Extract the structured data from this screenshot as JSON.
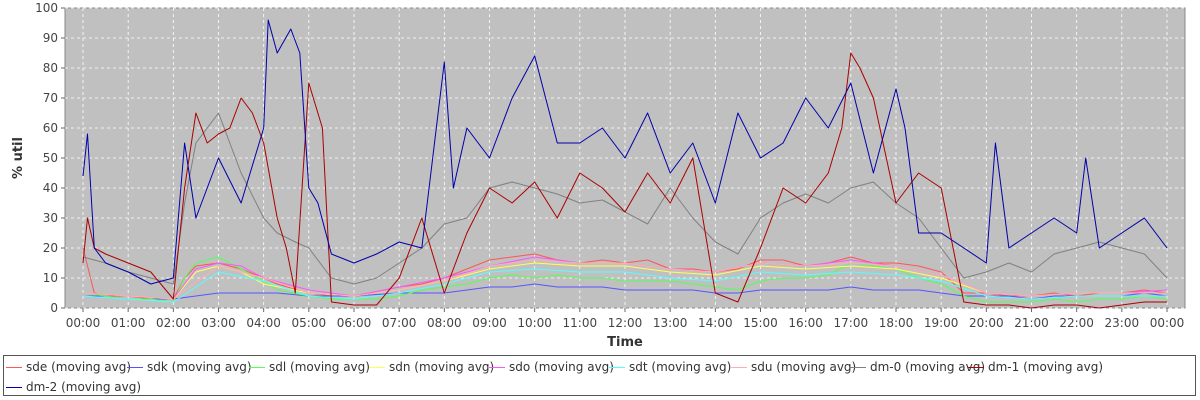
{
  "chart_data": {
    "type": "line",
    "title": "",
    "xlabel": "Time",
    "ylabel": "% util",
    "ylim": [
      0,
      100
    ],
    "yticks": [
      0,
      10,
      20,
      30,
      40,
      50,
      60,
      70,
      80,
      90,
      100
    ],
    "xlim": [
      0,
      24
    ],
    "xticks": [
      "00:00",
      "01:00",
      "02:00",
      "03:00",
      "04:00",
      "05:00",
      "06:00",
      "07:00",
      "08:00",
      "09:00",
      "10:00",
      "11:00",
      "12:00",
      "13:00",
      "14:00",
      "15:00",
      "16:00",
      "17:00",
      "18:00",
      "19:00",
      "20:00",
      "21:00",
      "22:00",
      "23:00",
      "00:00"
    ],
    "grid": true,
    "plot_background": "#c0c0c0",
    "legend_position": "bottom",
    "x_unit": "hours",
    "series": [
      {
        "name": "sde (moving avg)",
        "color": "#ff5555",
        "x": [
          0,
          0.25,
          0.5,
          1,
          1.5,
          2,
          2.25,
          2.5,
          3,
          3.5,
          4,
          4.3,
          5,
          5.5,
          6,
          7,
          7.5,
          8,
          8.5,
          9,
          9.5,
          10,
          10.5,
          11,
          11.5,
          12,
          12.5,
          13,
          13.5,
          14,
          14.5,
          15,
          15.5,
          16,
          16.5,
          17,
          17.5,
          18,
          18.5,
          19,
          19.5,
          20,
          20.5,
          21,
          21.5,
          22,
          22.5,
          23,
          23.5,
          24
        ],
        "y": [
          20,
          5,
          4,
          4,
          3,
          3,
          10,
          14,
          15,
          13,
          10,
          8,
          5,
          4,
          4,
          7,
          8,
          10,
          13,
          16,
          17,
          18,
          16,
          15,
          16,
          15,
          16,
          13,
          13,
          12,
          13,
          16,
          16,
          14,
          15,
          17,
          15,
          15,
          14,
          12,
          5,
          5,
          4,
          4,
          5,
          4,
          5,
          5,
          6,
          5
        ]
      },
      {
        "name": "sdk (moving avg)",
        "color": "#5555ff",
        "x": [
          0,
          0.5,
          1,
          1.5,
          2,
          2.5,
          3,
          3.5,
          4,
          4.3,
          5,
          5.5,
          6,
          7,
          7.5,
          8,
          8.5,
          9,
          9.5,
          10,
          10.5,
          11,
          11.5,
          12,
          12.5,
          13,
          13.5,
          14,
          14.5,
          15,
          15.5,
          16,
          16.5,
          17,
          17.5,
          18,
          18.5,
          19,
          19.5,
          20,
          20.5,
          21,
          21.5,
          22,
          22.5,
          23,
          23.5,
          24
        ],
        "y": [
          4,
          4,
          3,
          3,
          3,
          4,
          5,
          5,
          5,
          5,
          4,
          4,
          4,
          5,
          5,
          5,
          6,
          7,
          7,
          8,
          7,
          7,
          7,
          6,
          6,
          6,
          6,
          5,
          5,
          6,
          6,
          6,
          6,
          7,
          6,
          6,
          6,
          5,
          4,
          4,
          4,
          3,
          4,
          4,
          4,
          4,
          5,
          4
        ]
      },
      {
        "name": "sdl (moving avg)",
        "color": "#55ff55",
        "x": [
          0,
          0.5,
          1,
          1.5,
          2,
          2.25,
          2.5,
          3,
          3.5,
          4,
          4.3,
          5,
          5.5,
          6,
          6.5,
          7,
          7.5,
          8,
          8.5,
          9,
          9.5,
          10,
          10.5,
          11,
          11.5,
          12,
          12.5,
          13,
          13.5,
          14,
          14.5,
          15,
          15.5,
          16,
          16.5,
          17,
          17.5,
          18,
          18.5,
          19,
          19.5,
          20,
          20.5,
          21,
          21.5,
          22,
          22.5,
          23,
          23.5,
          24
        ],
        "y": [
          5,
          4,
          3,
          3,
          2,
          10,
          15,
          17,
          13,
          9,
          6,
          4,
          3,
          3,
          3,
          4,
          6,
          7,
          8,
          10,
          11,
          10,
          11,
          10,
          10,
          9,
          9,
          9,
          8,
          7,
          6,
          9,
          10,
          10,
          11,
          15,
          14,
          13,
          10,
          8,
          4,
          2,
          2,
          2,
          3,
          2,
          3,
          3,
          4,
          3
        ]
      },
      {
        "name": "sdn (moving avg)",
        "color": "#ffff55",
        "x": [
          0,
          1,
          2,
          2.5,
          3,
          3.5,
          4,
          5,
          6,
          7,
          8,
          9,
          10,
          11,
          12,
          13,
          14,
          15,
          16,
          17,
          18,
          19,
          20,
          21,
          22,
          23,
          24
        ],
        "y": [
          5,
          4,
          3,
          12,
          14,
          12,
          8,
          5,
          4,
          6,
          9,
          13,
          15,
          14,
          14,
          12,
          11,
          14,
          13,
          14,
          13,
          10,
          5,
          4,
          5,
          5,
          5
        ]
      },
      {
        "name": "sdo (moving avg)",
        "color": "#ff55ff",
        "x": [
          0,
          1,
          2,
          2.5,
          3,
          3.5,
          4,
          5,
          6,
          7,
          8,
          9,
          10,
          11,
          12,
          13,
          14,
          15,
          16,
          17,
          18,
          19,
          20,
          21,
          22,
          23,
          24
        ],
        "y": [
          5,
          4,
          3,
          13,
          15,
          14,
          10,
          6,
          4,
          7,
          10,
          14,
          17,
          15,
          15,
          13,
          12,
          15,
          14,
          16,
          14,
          11,
          5,
          4,
          5,
          5,
          6
        ]
      },
      {
        "name": "sdt (moving avg)",
        "color": "#55ffff",
        "x": [
          0,
          1,
          2,
          3,
          4,
          5,
          6,
          7,
          8,
          9,
          10,
          11,
          12,
          13,
          14,
          15,
          16,
          17,
          18,
          19,
          20,
          21,
          22,
          23,
          24
        ],
        "y": [
          4,
          3,
          2,
          12,
          9,
          4,
          3,
          5,
          8,
          12,
          13,
          12,
          12,
          10,
          9,
          12,
          11,
          12,
          11,
          9,
          4,
          3,
          4,
          4,
          4
        ]
      },
      {
        "name": "sdu (moving avg)",
        "color": "#ffafaf",
        "x": [
          0,
          1,
          2,
          3,
          4,
          5,
          6,
          7,
          8,
          9,
          10,
          11,
          12,
          13,
          14,
          15,
          16,
          17,
          18,
          19,
          20,
          21,
          22,
          23,
          24
        ],
        "y": [
          5,
          4,
          3,
          14,
          10,
          5,
          4,
          6,
          9,
          14,
          16,
          15,
          15,
          13,
          12,
          15,
          14,
          15,
          14,
          11,
          5,
          4,
          5,
          5,
          5
        ]
      },
      {
        "name": "dm-0 (moving avg)",
        "color": "#808080",
        "x": [
          0,
          0.25,
          0.5,
          1,
          1.5,
          2,
          2.25,
          2.5,
          3,
          3.5,
          4,
          4.3,
          4.7,
          5,
          5.5,
          6,
          6.5,
          7,
          7.5,
          8,
          8.5,
          9,
          9.5,
          10,
          10.5,
          11,
          11.5,
          12,
          12.5,
          13,
          13.5,
          14,
          14.5,
          15,
          15.5,
          16,
          16.5,
          17,
          17.5,
          18,
          18.5,
          19,
          19.5,
          20,
          20.5,
          21,
          21.5,
          22,
          22.5,
          23,
          23.5,
          24
        ],
        "y": [
          17,
          16,
          15,
          12,
          10,
          8,
          35,
          55,
          65,
          45,
          30,
          25,
          22,
          20,
          10,
          8,
          10,
          15,
          20,
          28,
          30,
          40,
          42,
          40,
          38,
          35,
          36,
          32,
          28,
          40,
          30,
          22,
          18,
          30,
          35,
          38,
          35,
          40,
          42,
          35,
          30,
          20,
          10,
          12,
          15,
          12,
          18,
          20,
          22,
          20,
          18,
          10
        ]
      },
      {
        "name": "dm-1 (moving avg)",
        "color": "#aa0000",
        "x": [
          0,
          0.1,
          0.25,
          0.5,
          1,
          1.5,
          2,
          2.25,
          2.5,
          2.75,
          3,
          3.25,
          3.5,
          3.75,
          4,
          4.3,
          4.5,
          4.7,
          5,
          5.3,
          5.5,
          6,
          6.5,
          7,
          7.5,
          8,
          8.5,
          9,
          9.5,
          10,
          10.5,
          11,
          11.5,
          12,
          12.5,
          13,
          13.5,
          14,
          14.5,
          15,
          15.5,
          16,
          16.5,
          16.8,
          17,
          17.2,
          17.5,
          18,
          18.5,
          19,
          19.5,
          20,
          20.5,
          21,
          21.5,
          22,
          22.5,
          23,
          23.5,
          24
        ],
        "y": [
          15,
          30,
          20,
          18,
          15,
          12,
          3,
          40,
          65,
          55,
          58,
          60,
          70,
          65,
          55,
          30,
          20,
          5,
          75,
          60,
          2,
          1,
          1,
          10,
          30,
          5,
          25,
          40,
          35,
          42,
          30,
          45,
          40,
          32,
          45,
          35,
          50,
          5,
          2,
          20,
          40,
          35,
          45,
          60,
          85,
          80,
          70,
          35,
          45,
          40,
          2,
          1,
          1,
          0,
          1,
          1,
          0,
          1,
          2,
          2
        ]
      },
      {
        "name": "dm-2 (moving avg)",
        "color": "#0000aa",
        "x": [
          0,
          0.1,
          0.25,
          0.5,
          1,
          1.5,
          2,
          2.25,
          2.5,
          3,
          3.5,
          4,
          4.1,
          4.3,
          4.6,
          4.8,
          5,
          5.2,
          5.5,
          6,
          6.5,
          7,
          7.5,
          8,
          8.2,
          8.5,
          9,
          9.5,
          10,
          10.5,
          11,
          11.5,
          12,
          12.5,
          13,
          13.5,
          14,
          14.5,
          15,
          15.5,
          16,
          16.5,
          17,
          17.5,
          18,
          18.2,
          18.5,
          19,
          19.5,
          20,
          20.2,
          20.5,
          21,
          21.5,
          22,
          22.2,
          22.5,
          23,
          23.5,
          24
        ],
        "y": [
          44,
          58,
          20,
          15,
          12,
          8,
          10,
          55,
          30,
          50,
          35,
          60,
          96,
          85,
          93,
          85,
          40,
          35,
          18,
          15,
          18,
          22,
          20,
          82,
          40,
          60,
          50,
          70,
          84,
          55,
          55,
          60,
          50,
          65,
          45,
          55,
          35,
          65,
          50,
          55,
          70,
          60,
          75,
          45,
          73,
          60,
          25,
          25,
          20,
          15,
          55,
          20,
          25,
          30,
          25,
          50,
          20,
          25,
          30,
          20
        ]
      }
    ]
  }
}
